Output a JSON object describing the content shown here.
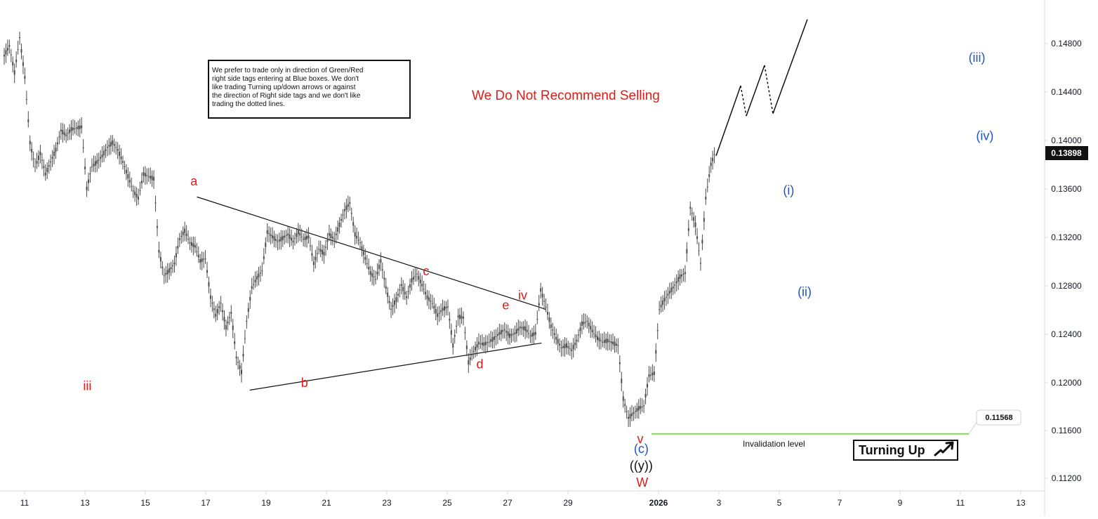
{
  "chart_data": {
    "type": "candlestick",
    "x_ticks": [
      "11",
      "13",
      "15",
      "17",
      "19",
      "21",
      "23",
      "25",
      "27",
      "29",
      "2026",
      "3",
      "5",
      "7",
      "9",
      "11",
      "13"
    ],
    "y_ticks": [
      "0.14800",
      "0.14400",
      "0.14000",
      "0.13600",
      "0.13200",
      "0.12800",
      "0.12400",
      "0.12000",
      "0.11600",
      "0.11200"
    ],
    "ylim": [
      0.11,
      0.152
    ],
    "last_price": "0.13898",
    "invalidation_price": "0.11568",
    "invalidation_label": "Invalidation level",
    "headline": "We Do Not Recommend Selling",
    "note_lines": [
      "We prefer to trade only in direction of Green/Red",
      "right side tags entering at Blue boxes. We don't",
      "like trading Turning up/down arrows or against",
      "the direction of Right side tags and we don't like",
      "trading the dotted lines."
    ],
    "turning_label": "Turning Up",
    "price_path": [
      [
        0,
        0.147
      ],
      [
        2,
        0.1478
      ],
      [
        4,
        0.1456
      ],
      [
        6,
        0.1485
      ],
      [
        8,
        0.1452
      ],
      [
        10,
        0.1398
      ],
      [
        12,
        0.1378
      ],
      [
        14,
        0.1389
      ],
      [
        16,
        0.1372
      ],
      [
        18,
        0.1382
      ],
      [
        20,
        0.1392
      ],
      [
        22,
        0.1408
      ],
      [
        24,
        0.1404
      ],
      [
        26,
        0.1409
      ],
      [
        28,
        0.141
      ],
      [
        30,
        0.1411
      ],
      [
        32,
        0.136
      ],
      [
        34,
        0.1378
      ],
      [
        36,
        0.1382
      ],
      [
        38,
        0.1387
      ],
      [
        40,
        0.1394
      ],
      [
        42,
        0.1398
      ],
      [
        44,
        0.1392
      ],
      [
        46,
        0.1382
      ],
      [
        48,
        0.137
      ],
      [
        50,
        0.1358
      ],
      [
        52,
        0.1352
      ],
      [
        54,
        0.1372
      ],
      [
        56,
        0.137
      ],
      [
        58,
        0.1368
      ],
      [
        60,
        0.1308
      ],
      [
        62,
        0.1288
      ],
      [
        64,
        0.1292
      ],
      [
        66,
        0.1298
      ],
      [
        68,
        0.1318
      ],
      [
        70,
        0.1325
      ],
      [
        72,
        0.1315
      ],
      [
        74,
        0.1312
      ],
      [
        76,
        0.13
      ],
      [
        78,
        0.1302
      ],
      [
        80,
        0.127
      ],
      [
        82,
        0.1255
      ],
      [
        84,
        0.1265
      ],
      [
        86,
        0.1245
      ],
      [
        88,
        0.1257
      ],
      [
        90,
        0.122
      ],
      [
        92,
        0.1208
      ],
      [
        94,
        0.125
      ],
      [
        96,
        0.1278
      ],
      [
        98,
        0.1286
      ],
      [
        100,
        0.1292
      ],
      [
        102,
        0.1324
      ],
      [
        104,
        0.132
      ],
      [
        106,
        0.1316
      ],
      [
        108,
        0.1319
      ],
      [
        110,
        0.1322
      ],
      [
        112,
        0.1316
      ],
      [
        114,
        0.1324
      ],
      [
        116,
        0.1318
      ],
      [
        118,
        0.132
      ],
      [
        120,
        0.1298
      ],
      [
        122,
        0.131
      ],
      [
        124,
        0.1306
      ],
      [
        126,
        0.1322
      ],
      [
        128,
        0.1318
      ],
      [
        130,
        0.133
      ],
      [
        132,
        0.1342
      ],
      [
        134,
        0.1348
      ],
      [
        136,
        0.1322
      ],
      [
        138,
        0.1315
      ],
      [
        140,
        0.1302
      ],
      [
        142,
        0.129
      ],
      [
        144,
        0.1285
      ],
      [
        146,
        0.13
      ],
      [
        148,
        0.1278
      ],
      [
        150,
        0.126
      ],
      [
        152,
        0.1268
      ],
      [
        154,
        0.128
      ],
      [
        156,
        0.127
      ],
      [
        158,
        0.1284
      ],
      [
        160,
        0.1289
      ],
      [
        162,
        0.128
      ],
      [
        164,
        0.127
      ],
      [
        166,
        0.1265
      ],
      [
        168,
        0.1255
      ],
      [
        170,
        0.126
      ],
      [
        172,
        0.1262
      ],
      [
        174,
        0.123
      ],
      [
        176,
        0.1254
      ],
      [
        178,
        0.1253
      ],
      [
        180,
        0.1216
      ],
      [
        182,
        0.1225
      ],
      [
        184,
        0.1232
      ],
      [
        186,
        0.1231
      ],
      [
        188,
        0.1233
      ],
      [
        190,
        0.1236
      ],
      [
        192,
        0.124
      ],
      [
        194,
        0.1243
      ],
      [
        196,
        0.1238
      ],
      [
        198,
        0.124
      ],
      [
        200,
        0.1245
      ],
      [
        202,
        0.1244
      ],
      [
        204,
        0.1238
      ],
      [
        206,
        0.124
      ],
      [
        208,
        0.1276
      ],
      [
        210,
        0.1262
      ],
      [
        212,
        0.1246
      ],
      [
        214,
        0.1236
      ],
      [
        216,
        0.1228
      ],
      [
        218,
        0.123
      ],
      [
        220,
        0.1226
      ],
      [
        222,
        0.1234
      ],
      [
        224,
        0.1248
      ],
      [
        226,
        0.125
      ],
      [
        228,
        0.1242
      ],
      [
        230,
        0.1236
      ],
      [
        232,
        0.1233
      ],
      [
        234,
        0.1234
      ],
      [
        236,
        0.1232
      ],
      [
        238,
        0.123
      ],
      [
        240,
        0.1186
      ],
      [
        242,
        0.117
      ],
      [
        244,
        0.1174
      ],
      [
        246,
        0.1178
      ],
      [
        248,
        0.118
      ],
      [
        250,
        0.1205
      ],
      [
        252,
        0.1207
      ],
      [
        254,
        0.126
      ],
      [
        256,
        0.1268
      ],
      [
        258,
        0.1274
      ],
      [
        260,
        0.128
      ],
      [
        262,
        0.1287
      ],
      [
        264,
        0.129
      ],
      [
        266,
        0.1344
      ],
      [
        268,
        0.133
      ],
      [
        270,
        0.1298
      ],
      [
        272,
        0.1352
      ],
      [
        274,
        0.138
      ],
      [
        276,
        0.1392
      ]
    ],
    "projection": [
      [
        0.1387,
        2.3,
        0.1445
      ],
      [
        0.1445,
        3.1,
        0.142
      ],
      [
        0.142,
        4.5,
        0.1462
      ],
      [
        0.1462,
        6.0,
        0.1422
      ],
      [
        0.1422,
        7.5,
        0.15
      ]
    ],
    "labels": [
      {
        "text": "a",
        "x": 17.0,
        "y": 0.13625,
        "color": "#e01b1b"
      },
      {
        "text": "b",
        "x": 28.1,
        "y": 0.11955,
        "color": "#e01b1b"
      },
      {
        "text": "c",
        "x": 40.3,
        "y": 0.1288,
        "color": "#e01b1b"
      },
      {
        "text": "d",
        "x": 45.7,
        "y": 0.1211,
        "color": "#e01b1b"
      },
      {
        "text": "e",
        "x": 48.3,
        "y": 0.126,
        "color": "#e01b1b"
      },
      {
        "text": "iv",
        "x": 50.0,
        "y": 0.1268,
        "color": "#e01b1b"
      },
      {
        "text": "iii",
        "x": 6.3,
        "y": 0.1193,
        "color": "#e01b1b"
      },
      {
        "text": "v",
        "x": 61.8,
        "y": 0.1149,
        "color": "#e01b1b"
      },
      {
        "text": "(c)",
        "x": 61.9,
        "y": 0.1141,
        "color": "#1f56c7"
      },
      {
        "text": "((y))",
        "x": 61.9,
        "y": 0.1127,
        "color": "#111111"
      },
      {
        "text": "W",
        "x": 62.0,
        "y": 0.1113,
        "color": "#e01b1b"
      },
      {
        "text": "(i)",
        "x": 76.7,
        "y": 0.1355,
        "color": "#1f56c7"
      },
      {
        "text": "(ii)",
        "x": 78.3,
        "y": 0.1271,
        "color": "#1f56c7"
      },
      {
        "text": "(iii)",
        "x": 95.6,
        "y": 0.1465,
        "color": "#1f56c7"
      },
      {
        "text": "(iv)",
        "x": 96.4,
        "y": 0.14,
        "color": "#1f56c7"
      }
    ],
    "triangle": [
      [
        [
          17.3,
          0.1353
        ],
        [
          52.3,
          0.126
        ]
      ],
      [
        [
          22.6,
          0.1193
        ],
        [
          51.9,
          0.1232
        ]
      ]
    ],
    "grid": false,
    "legend": "none",
    "colors": {
      "candle": "#4a4a4a",
      "projection": "#111111",
      "invalidation": "#7ed957",
      "red_text": "#e01b1b",
      "blue_text": "#1f56c7",
      "black_text": "#111111",
      "axis": "#d9d9d9",
      "price_box": "#111111"
    }
  }
}
